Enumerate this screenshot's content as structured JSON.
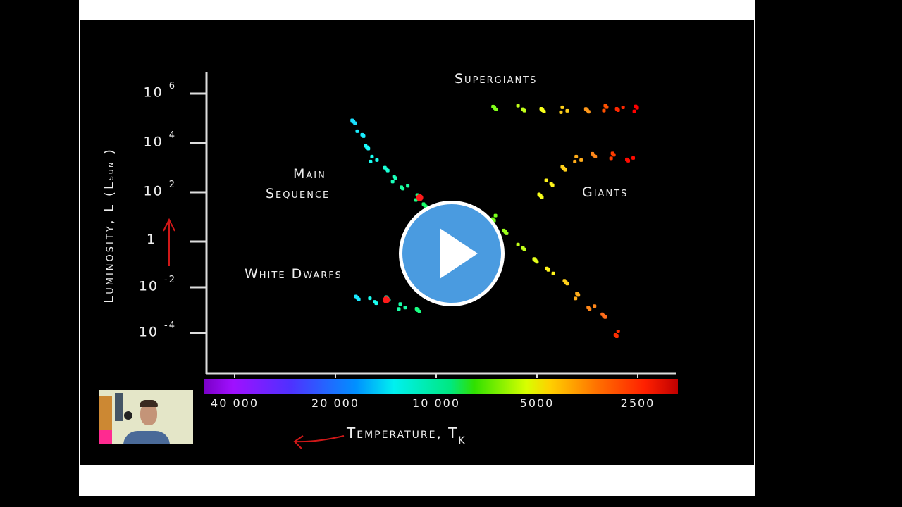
{
  "video": {
    "play_button": "play-icon",
    "webcam_overlay": "presenter webcam"
  },
  "chart_data": {
    "type": "scatter",
    "title": "",
    "xlabel": "Temperature, T",
    "xlabel_sub": "K",
    "ylabel": "Luminosity, L (L",
    "ylabel_sub": "sun",
    "ylabel_close": ")",
    "x_scale": "log",
    "x_reversed": true,
    "y_scale": "log",
    "x_ticks": [
      {
        "label": "40 000",
        "value": 40000
      },
      {
        "label": "20 000",
        "value": 20000
      },
      {
        "label": "10 000",
        "value": 10000
      },
      {
        "label": "5000",
        "value": 5000
      },
      {
        "label": "2500",
        "value": 2500
      }
    ],
    "y_ticks": [
      {
        "base": "10",
        "exp": "6",
        "value": 1000000
      },
      {
        "base": "10",
        "exp": "4",
        "value": 10000
      },
      {
        "base": "10",
        "exp": "2",
        "value": 100
      },
      {
        "base": "1",
        "exp": "",
        "value": 1
      },
      {
        "base": "10",
        "exp": "-2",
        "value": 0.01
      },
      {
        "base": "10",
        "exp": "-4",
        "value": 0.0001
      }
    ],
    "color_bar": "temperature spectrum violet to red",
    "annotations": {
      "supergiants": "Supergiants",
      "main1": "Main",
      "main2": "Sequence",
      "giants": "Giants",
      "white_dwarfs": "White Dwarfs"
    },
    "highlight_color": "#ff1a1a",
    "series": [
      {
        "name": "Main Sequence",
        "points": [
          [
            17400,
            63000
          ],
          [
            16800,
            23000
          ],
          [
            16100,
            6300
          ],
          [
            15400,
            2300
          ],
          [
            14300,
            870
          ],
          [
            13300,
            330
          ],
          [
            12400,
            170
          ],
          [
            11500,
            63
          ],
          [
            10700,
            33
          ],
          [
            9950,
            17
          ],
          [
            6750,
            8.7
          ],
          [
            6130,
            2.3
          ],
          [
            5560,
            0.6
          ],
          [
            5050,
            0.15
          ],
          [
            4580,
            0.05
          ],
          [
            4160,
            0.018
          ],
          [
            3780,
            0.0043
          ],
          [
            3430,
            0.0015
          ],
          [
            3190,
            0.0005
          ],
          [
            2860,
            9e-05
          ]
        ]
      },
      {
        "name": "Supergiants",
        "points": [
          [
            6600,
            230000
          ],
          [
            5560,
            250000
          ],
          [
            4810,
            200000
          ],
          [
            4160,
            230000
          ],
          [
            3590,
            210000
          ],
          [
            3110,
            250000
          ],
          [
            2820,
            260000
          ],
          [
            2560,
            250000
          ]
        ]
      },
      {
        "name": "Giants",
        "points": [
          [
            4810,
            63
          ],
          [
            4580,
            235
          ],
          [
            4160,
            870
          ],
          [
            3780,
            2300
          ],
          [
            3430,
            3200
          ],
          [
            2960,
            2900
          ],
          [
            2630,
            2300
          ]
        ]
      },
      {
        "name": "White Dwarfs",
        "points": [
          [
            16950,
            0.003
          ],
          [
            15400,
            0.0025
          ],
          [
            13980,
            0.003
          ],
          [
            12680,
            0.0015
          ],
          [
            11500,
            0.001
          ]
        ]
      }
    ],
    "highlighted_points": [
      [
        11200,
        60
      ],
      [
        14100,
        0.0028
      ]
    ]
  },
  "annotations_drawn": {
    "red_arrow_up": "arrow",
    "red_arrow_left": "arrow"
  }
}
